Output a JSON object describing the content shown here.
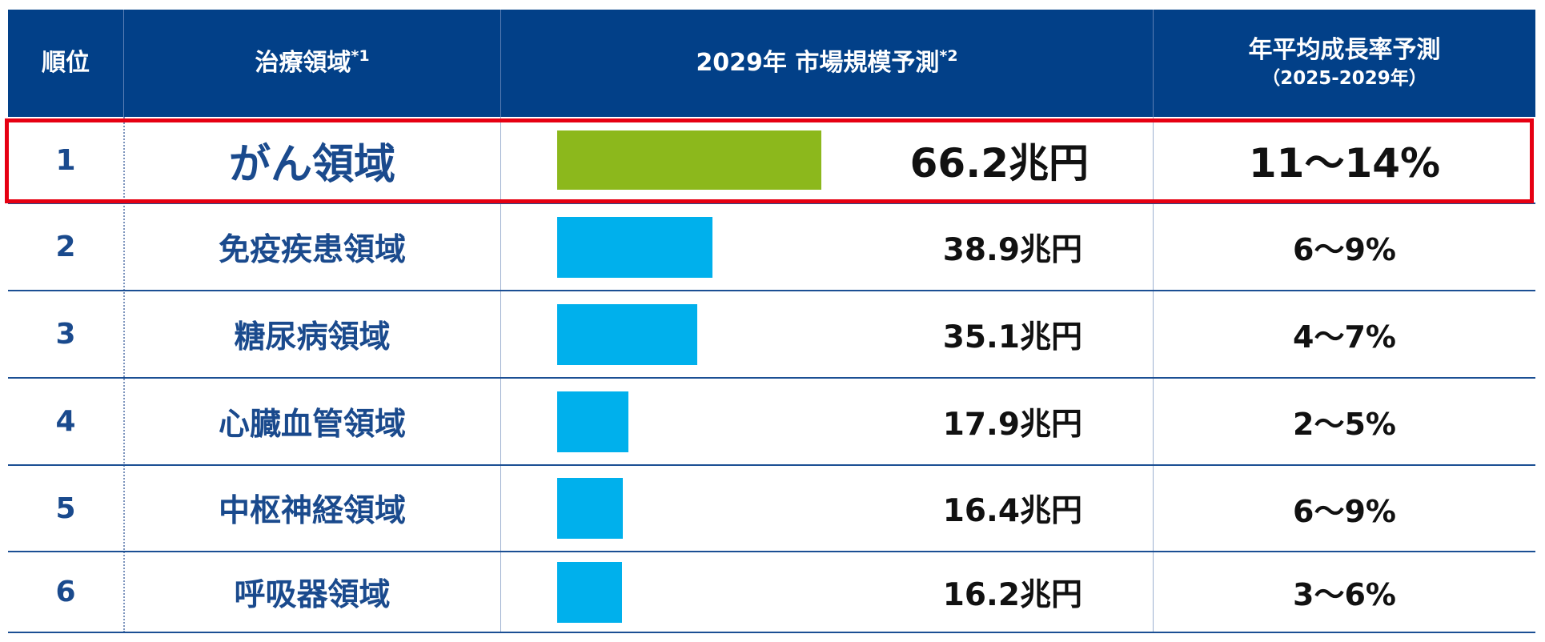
{
  "header": {
    "rank": "順位",
    "area": "治療領域",
    "area_note": "*1",
    "market": "2029年 市場規模予測",
    "market_note": "*2",
    "cagr": "年平均成長率予測",
    "cagr_sub": "（2025-2029年）"
  },
  "colors": {
    "header_bg": "#024088",
    "top_bar": "#8cb81c",
    "bar": "#00b0ec",
    "highlight_border": "#e60012",
    "area_text": "#1a4a8d"
  },
  "chart_data": {
    "type": "bar",
    "orientation": "horizontal",
    "value_unit": "兆円",
    "categories": [
      "がん領域",
      "免疫疾患領域",
      "糖尿病領域",
      "心臓血管領域",
      "中枢神経領域",
      "呼吸器領域"
    ],
    "values": [
      66.2,
      38.9,
      35.1,
      17.9,
      16.4,
      16.2
    ],
    "highlighted_index": 0
  },
  "rows": [
    {
      "rank": "1",
      "area": "がん領域",
      "market": "66.2兆円",
      "cagr": "11～14%"
    },
    {
      "rank": "2",
      "area": "免疫疾患領域",
      "market": "38.9兆円",
      "cagr": "6～9%"
    },
    {
      "rank": "3",
      "area": "糖尿病領域",
      "market": "35.1兆円",
      "cagr": "4～7%"
    },
    {
      "rank": "4",
      "area": "心臓血管領域",
      "market": "17.9兆円",
      "cagr": "2～5%"
    },
    {
      "rank": "5",
      "area": "中枢神経領域",
      "market": "16.4兆円",
      "cagr": "6～9%"
    },
    {
      "rank": "6",
      "area": "呼吸器領域",
      "market": "16.2兆円",
      "cagr": "3～6%"
    }
  ]
}
